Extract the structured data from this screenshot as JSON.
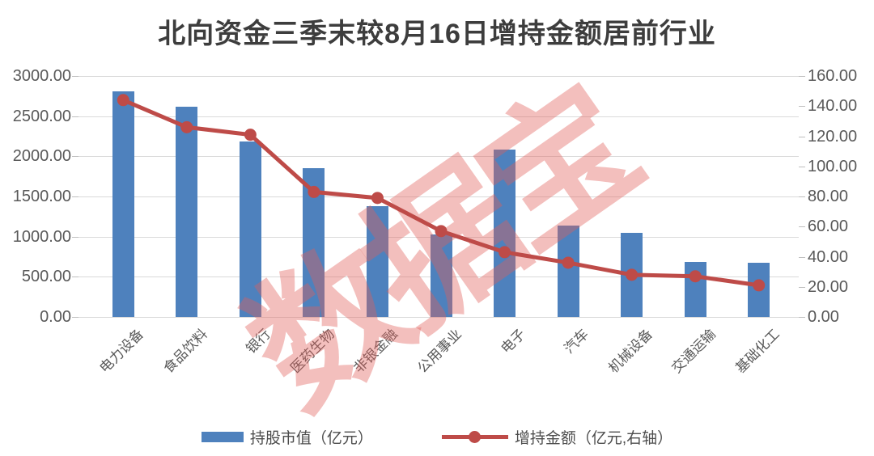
{
  "title": "北向资金三季末较8月16日增持金额居前行业",
  "watermark": "数据宝",
  "legend": {
    "bar_label": "持股市值（亿元）",
    "line_label": "增持金额（亿元,右轴）"
  },
  "colors": {
    "bar": "#4E81BD",
    "line": "#BE4B48",
    "grid": "#D9D9D9",
    "axis_text": "#595959",
    "title_text": "#3D3D3D",
    "watermark": "rgba(226,96,90,0.40)"
  },
  "chart_data": {
    "type": "bar",
    "subtype": "bar+line combo",
    "title": "北向资金三季末较8月16日增持金额居前行业",
    "categories": [
      "电力设备",
      "食品饮料",
      "银行",
      "医药生物",
      "非银金融",
      "公用事业",
      "电子",
      "汽车",
      "机械设备",
      "交通运输",
      "基础化工"
    ],
    "series": [
      {
        "name": "持股市值（亿元）",
        "type": "bar",
        "axis": "left",
        "values": [
          2810,
          2620,
          2180,
          1850,
          1380,
          1030,
          2080,
          1140,
          1050,
          685,
          675
        ]
      },
      {
        "name": "增持金额（亿元,右轴）",
        "type": "line",
        "axis": "right",
        "values": [
          144,
          126,
          121,
          83,
          79,
          57,
          43,
          36,
          28,
          27,
          21
        ]
      }
    ],
    "left_axis": {
      "min": 0,
      "max": 3000,
      "step": 500,
      "tick_labels": [
        "3000.00",
        "2500.00",
        "2000.00",
        "1500.00",
        "1000.00",
        "500.00",
        "0.00"
      ]
    },
    "right_axis": {
      "min": 0,
      "max": 160,
      "step": 20,
      "tick_labels": [
        "160.00",
        "140.00",
        "120.00",
        "100.00",
        "80.00",
        "60.00",
        "40.00",
        "20.00",
        "0.00"
      ]
    },
    "grid": true,
    "legend_position": "bottom"
  }
}
